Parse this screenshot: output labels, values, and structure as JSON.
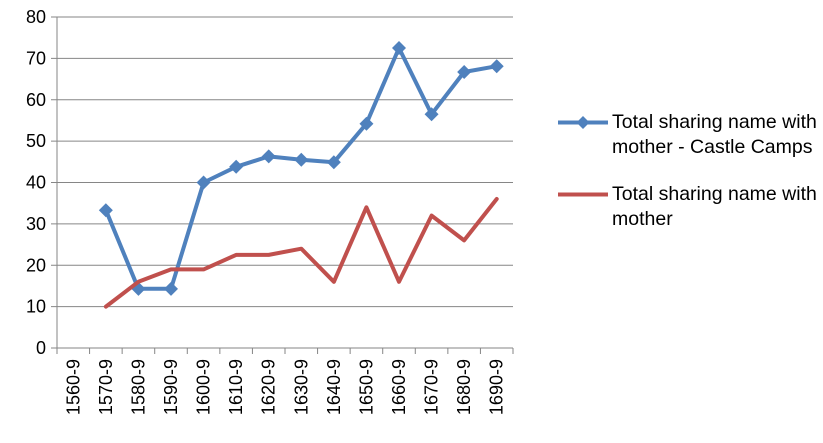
{
  "chart_data": {
    "type": "line",
    "title": "",
    "xlabel": "",
    "ylabel": "",
    "categories": [
      "1560-9",
      "1570-9",
      "1580-9",
      "1590-9",
      "1600-9",
      "1610-9",
      "1620-9",
      "1630-9",
      "1640-9",
      "1650-9",
      "1660-9",
      "1670-9",
      "1680-9",
      "1690-9"
    ],
    "ylim": [
      0,
      80
    ],
    "yticks": [
      0,
      10,
      20,
      30,
      40,
      50,
      60,
      70,
      80
    ],
    "grid": true,
    "legend_position": "right",
    "series": [
      {
        "name": "Total sharing name with mother - Castle Camps",
        "color": "#4F81BD",
        "marker": "diamond",
        "values": [
          null,
          33.3,
          14.3,
          14.3,
          40,
          43.8,
          46.3,
          45.5,
          44.9,
          54.2,
          72.5,
          56.5,
          66.7,
          68.1
        ]
      },
      {
        "name": "Total sharing name with mother",
        "color": "#C0504D",
        "marker": "none",
        "values": [
          null,
          10,
          16,
          19,
          19,
          22.5,
          22.5,
          24,
          16,
          34,
          16,
          32,
          26,
          36
        ]
      }
    ]
  }
}
